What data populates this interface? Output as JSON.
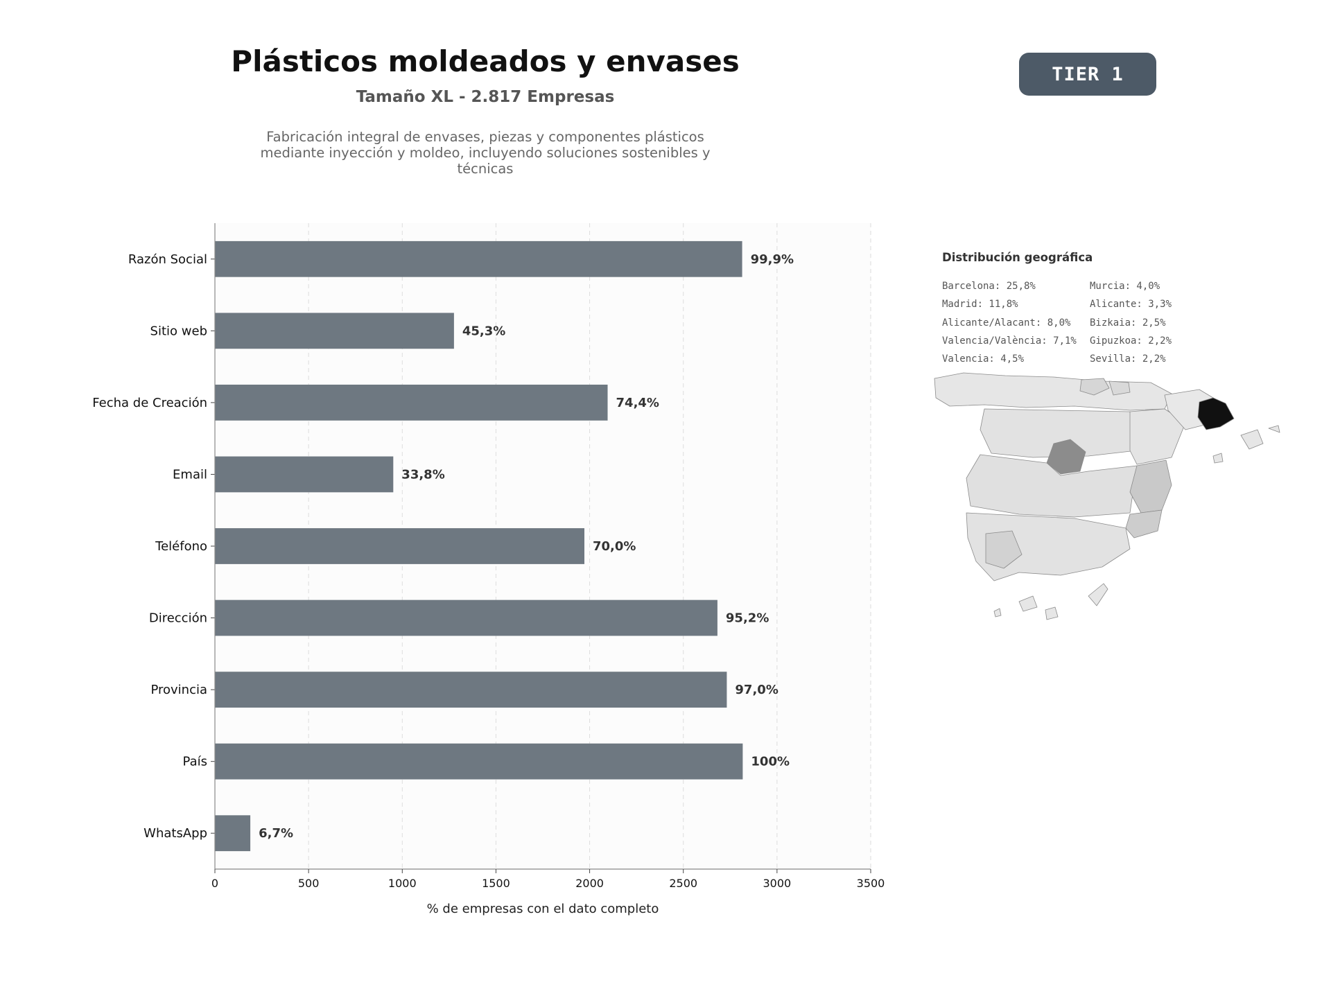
{
  "header": {
    "title": "Plásticos moldeados y envases",
    "subtitle": "Tamaño XL - 2.817 Empresas",
    "description": "Fabricación integral de envases, piezas y componentes plásticos mediante inyección y moldeo, incluyendo soluciones sostenibles y técnicas",
    "badge": "TIER 1"
  },
  "chart_data": {
    "type": "bar",
    "orientation": "horizontal",
    "categories": [
      "Razón Social",
      "Sitio web",
      "Fecha de Creación",
      "Email",
      "Teléfono",
      "Dirección",
      "Provincia",
      "País",
      "WhatsApp"
    ],
    "values": [
      2814,
      1276,
      2096,
      952,
      1972,
      2682,
      2732,
      2817,
      189
    ],
    "data_labels": [
      "99,9%",
      "45,3%",
      "74,4%",
      "33,8%",
      "70,0%",
      "95,2%",
      "97,0%",
      "100%",
      "6,7%"
    ],
    "xlabel": "% de empresas con el dato completo",
    "xlim": [
      0,
      3500
    ],
    "xticks": [
      0,
      500,
      1000,
      1500,
      2000,
      2500,
      3000,
      3500
    ],
    "grid": "vertical-dashed",
    "bar_color": "#6e7881"
  },
  "geo": {
    "title": "Distribución geográfica",
    "left_column": [
      "Barcelona: 25,8%",
      "Madrid: 11,8%",
      "Alicante/Alacant: 8,0%",
      "Valencia/València: 7,1%",
      "Valencia: 4,5%"
    ],
    "right_column": [
      "Murcia: 4,0%",
      "Alicante: 3,3%",
      "Bizkaia: 2,5%",
      "Gipuzkoa: 2,2%",
      "Sevilla: 2,2%"
    ]
  }
}
